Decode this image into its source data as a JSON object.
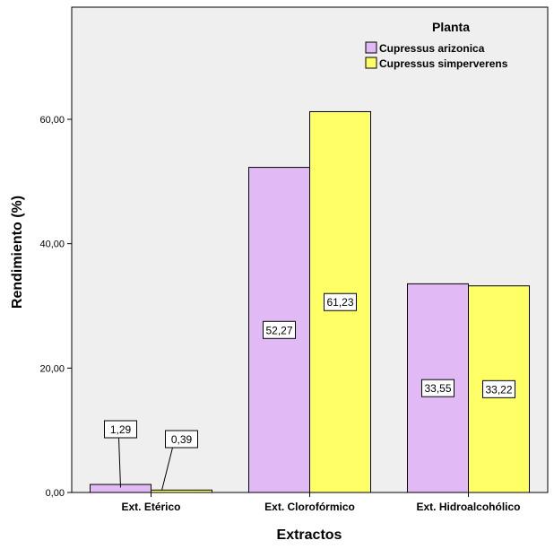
{
  "chart_data": {
    "type": "bar",
    "title": "",
    "xlabel": "Extractos",
    "ylabel": "Rendimiento (%)",
    "ylim": [
      0,
      75
    ],
    "yticks": [
      0,
      20,
      40,
      60
    ],
    "ytick_labels": [
      "0,00",
      "20,00",
      "40,00",
      "60,00"
    ],
    "categories": [
      "Ext. Etérico",
      "Ext. Clorofórmico",
      "Ext. Hidroalcohólico"
    ],
    "legend_title": "Planta",
    "legend_position": "top-right",
    "series": [
      {
        "name": "Cupressus arizonica",
        "color": "#e0b9f5",
        "values": [
          1.29,
          52.27,
          33.55
        ],
        "labels": [
          "1,29",
          "52,27",
          "33,55"
        ]
      },
      {
        "name": "Cupressus simperverens",
        "color": "#ffff66",
        "values": [
          0.39,
          61.23,
          33.22
        ],
        "labels": [
          "0,39",
          "61,23",
          "33,22"
        ]
      }
    ],
    "grid": false
  },
  "colors": {
    "plot_background": "#efefef",
    "axis": "#000000"
  }
}
